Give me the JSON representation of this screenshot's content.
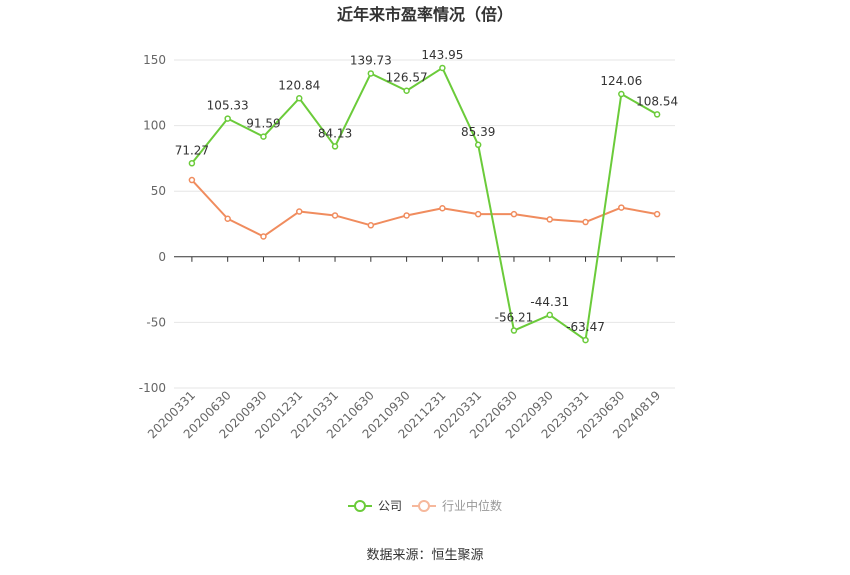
{
  "chart_data": {
    "type": "line",
    "title": "近年来市盈率情况（倍）",
    "categories": [
      "20200331",
      "20200630",
      "20200930",
      "20201231",
      "20210331",
      "20210630",
      "20210930",
      "20211231",
      "20220331",
      "20220630",
      "20220930",
      "20230331",
      "20230630",
      "20240819"
    ],
    "series": [
      {
        "name": "公司",
        "color": "#6bcb3a",
        "values": [
          71.27,
          105.33,
          91.59,
          120.84,
          84.13,
          139.73,
          126.57,
          143.95,
          85.39,
          -56.21,
          -44.31,
          -63.47,
          124.06,
          108.54
        ],
        "labels": [
          "71.27",
          "105.33",
          "91.59",
          "120.84",
          "84.13",
          "139.73",
          "126.57",
          "143.95",
          "85.39",
          "-56.21",
          "-44.31",
          "-63.47",
          "124.06",
          "108.54"
        ]
      },
      {
        "name": "行业中位数",
        "color": "#f08c5e",
        "values": [
          58.5,
          29,
          15.5,
          34.5,
          31.5,
          24,
          31.5,
          37,
          32.5,
          32.5,
          28.5,
          26.5,
          37.5,
          32.5
        ]
      }
    ],
    "yticks": [
      "150",
      "100",
      "50",
      "0",
      "-50",
      "-100"
    ],
    "ylim": [
      -100,
      150
    ],
    "grid": true,
    "legend_position": "bottom"
  },
  "source_text": "数据来源：恒生聚源"
}
